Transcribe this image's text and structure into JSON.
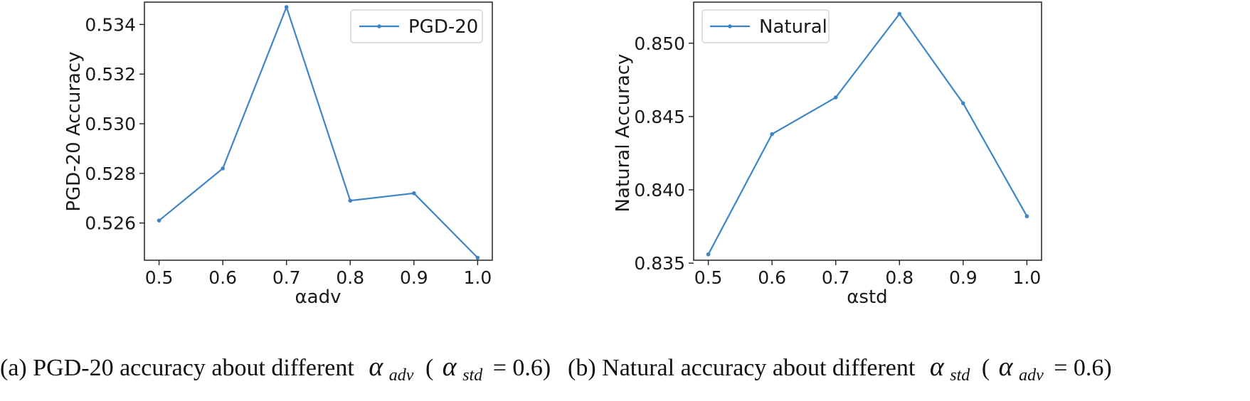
{
  "chart_data": [
    {
      "type": "line",
      "x": [
        0.5,
        0.6,
        0.7,
        0.8,
        0.9,
        1.0
      ],
      "x_ticks": [
        "0.5",
        "0.6",
        "0.7",
        "0.8",
        "0.9",
        "1.0"
      ],
      "series": [
        {
          "name": "PGD-20",
          "values": [
            0.5261,
            0.5282,
            0.5347,
            0.5269,
            0.5272,
            0.5246
          ],
          "color": "#3d85c6"
        }
      ],
      "xlabel": "αadv",
      "ylabel": "PGD-20 Accuracy",
      "xlim": [
        0.477,
        1.023
      ],
      "ylim": [
        0.5245,
        0.5349
      ],
      "y_ticks": [
        0.526,
        0.528,
        0.53,
        0.532,
        0.534
      ],
      "y_tick_labels": [
        "0.526",
        "0.528",
        "0.530",
        "0.532",
        "0.534"
      ],
      "legend": "top-right",
      "grid": false
    },
    {
      "type": "line",
      "x": [
        0.5,
        0.6,
        0.7,
        0.8,
        0.9,
        1.0
      ],
      "x_ticks": [
        "0.5",
        "0.6",
        "0.7",
        "0.8",
        "0.9",
        "1.0"
      ],
      "series": [
        {
          "name": "Natural",
          "values": [
            0.8356,
            0.8438,
            0.8463,
            0.852,
            0.8459,
            0.8382
          ],
          "color": "#3d85c6"
        }
      ],
      "xlabel": "αstd",
      "ylabel": "Natural Accuracy",
      "xlim": [
        0.477,
        1.023
      ],
      "ylim": [
        0.8352,
        0.8528
      ],
      "y_ticks": [
        0.835,
        0.84,
        0.845,
        0.85
      ],
      "y_tick_labels": [
        "0.835",
        "0.840",
        "0.845",
        "0.850"
      ],
      "legend": "top-left",
      "grid": false
    }
  ],
  "captions": [
    {
      "prefix": "(a) PGD-20 accuracy about different",
      "var": "α",
      "sub": "adv",
      "paren_var": "α",
      "paren_sub": "std",
      "paren_value": "= 0.6)"
    },
    {
      "prefix": "(b) Natural accuracy about different",
      "var": "α",
      "sub": "std",
      "paren_var": "α",
      "paren_sub": "adv",
      "paren_value": "= 0.6)"
    }
  ]
}
